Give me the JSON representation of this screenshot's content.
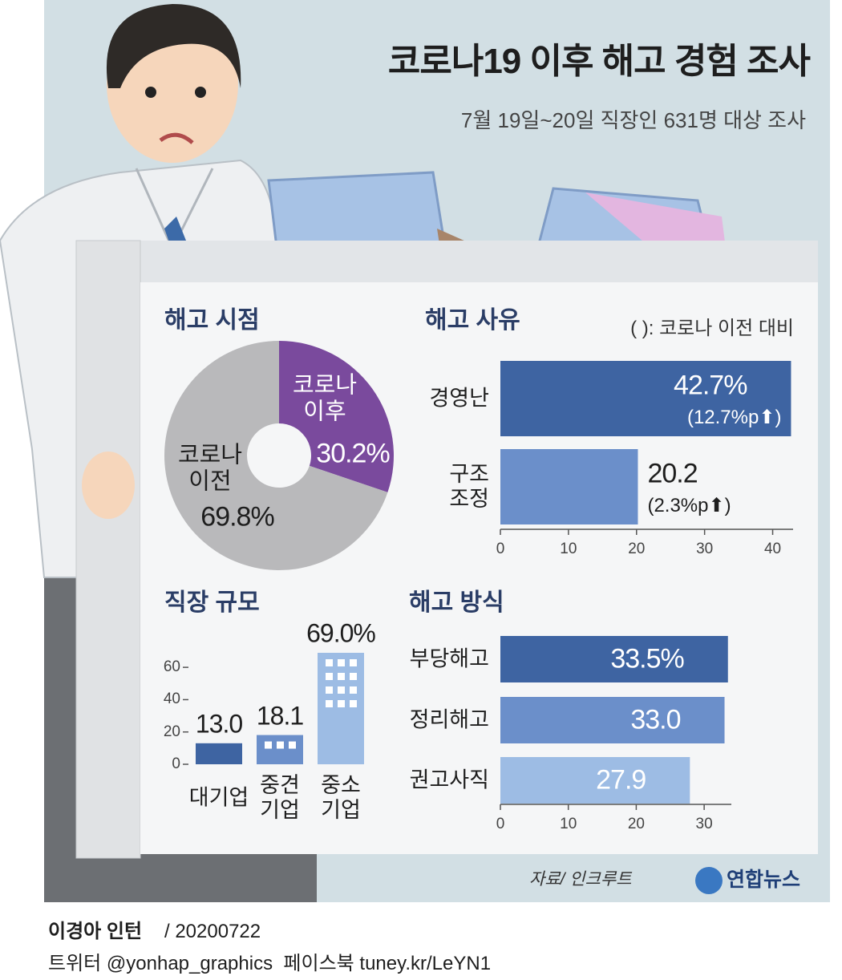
{
  "title": "코로나19 이후 해고 경험 조사",
  "subtitle": "7월 19일~20일 직장인 631명 대상 조사",
  "chart_data": [
    {
      "type": "pie",
      "title": "해고 시점",
      "categories": [
        "코로나 이후",
        "코로나 이전"
      ],
      "values": [
        30.2,
        69.8
      ],
      "value_labels": [
        "30.2%",
        "69.8%"
      ],
      "colors": [
        "#7a4a9d",
        "#b9b9bb"
      ]
    },
    {
      "type": "hbar",
      "title": "해고 사유",
      "note": "( ): 코로나 이전 대비",
      "categories": [
        "경영난",
        "구조 조정"
      ],
      "values": [
        42.7,
        20.2
      ],
      "value_labels": [
        "42.7%",
        "20.2"
      ],
      "changes": [
        "(12.7%p⬆)",
        "(2.3%p⬆)"
      ],
      "colors": [
        "#3e64a2",
        "#6b8fca"
      ],
      "xlim": [
        0,
        43
      ],
      "xticks": [
        0,
        10,
        20,
        30,
        40
      ]
    },
    {
      "type": "vbar",
      "title": "직장 규모",
      "categories": [
        "대기업",
        "중견 기업",
        "중소 기업"
      ],
      "values": [
        13.0,
        18.1,
        69.0
      ],
      "value_labels": [
        "13.0",
        "18.1",
        "69.0%"
      ],
      "colors": [
        "#3e64a2",
        "#6b8fca",
        "#9dbce4"
      ],
      "ylim": [
        0,
        69
      ],
      "yticks": [
        0,
        20,
        40,
        60
      ]
    },
    {
      "type": "hbar",
      "title": "해고 방식",
      "categories": [
        "부당해고",
        "정리해고",
        "권고사직"
      ],
      "values": [
        33.5,
        33.0,
        27.9
      ],
      "value_labels": [
        "33.5%",
        "33.0",
        "27.9"
      ],
      "colors": [
        "#3e64a2",
        "#6b8fca",
        "#9dbce4"
      ],
      "xlim": [
        0,
        34
      ],
      "xticks": [
        0,
        10,
        20,
        30
      ]
    }
  ],
  "source": "자료/ 인크루트",
  "logo": "연합뉴스",
  "author": "이경아 인턴",
  "date": "/ 20200722",
  "social": "트위터 @yonhap_graphics  페이스북 tuney.kr/LeYN1"
}
